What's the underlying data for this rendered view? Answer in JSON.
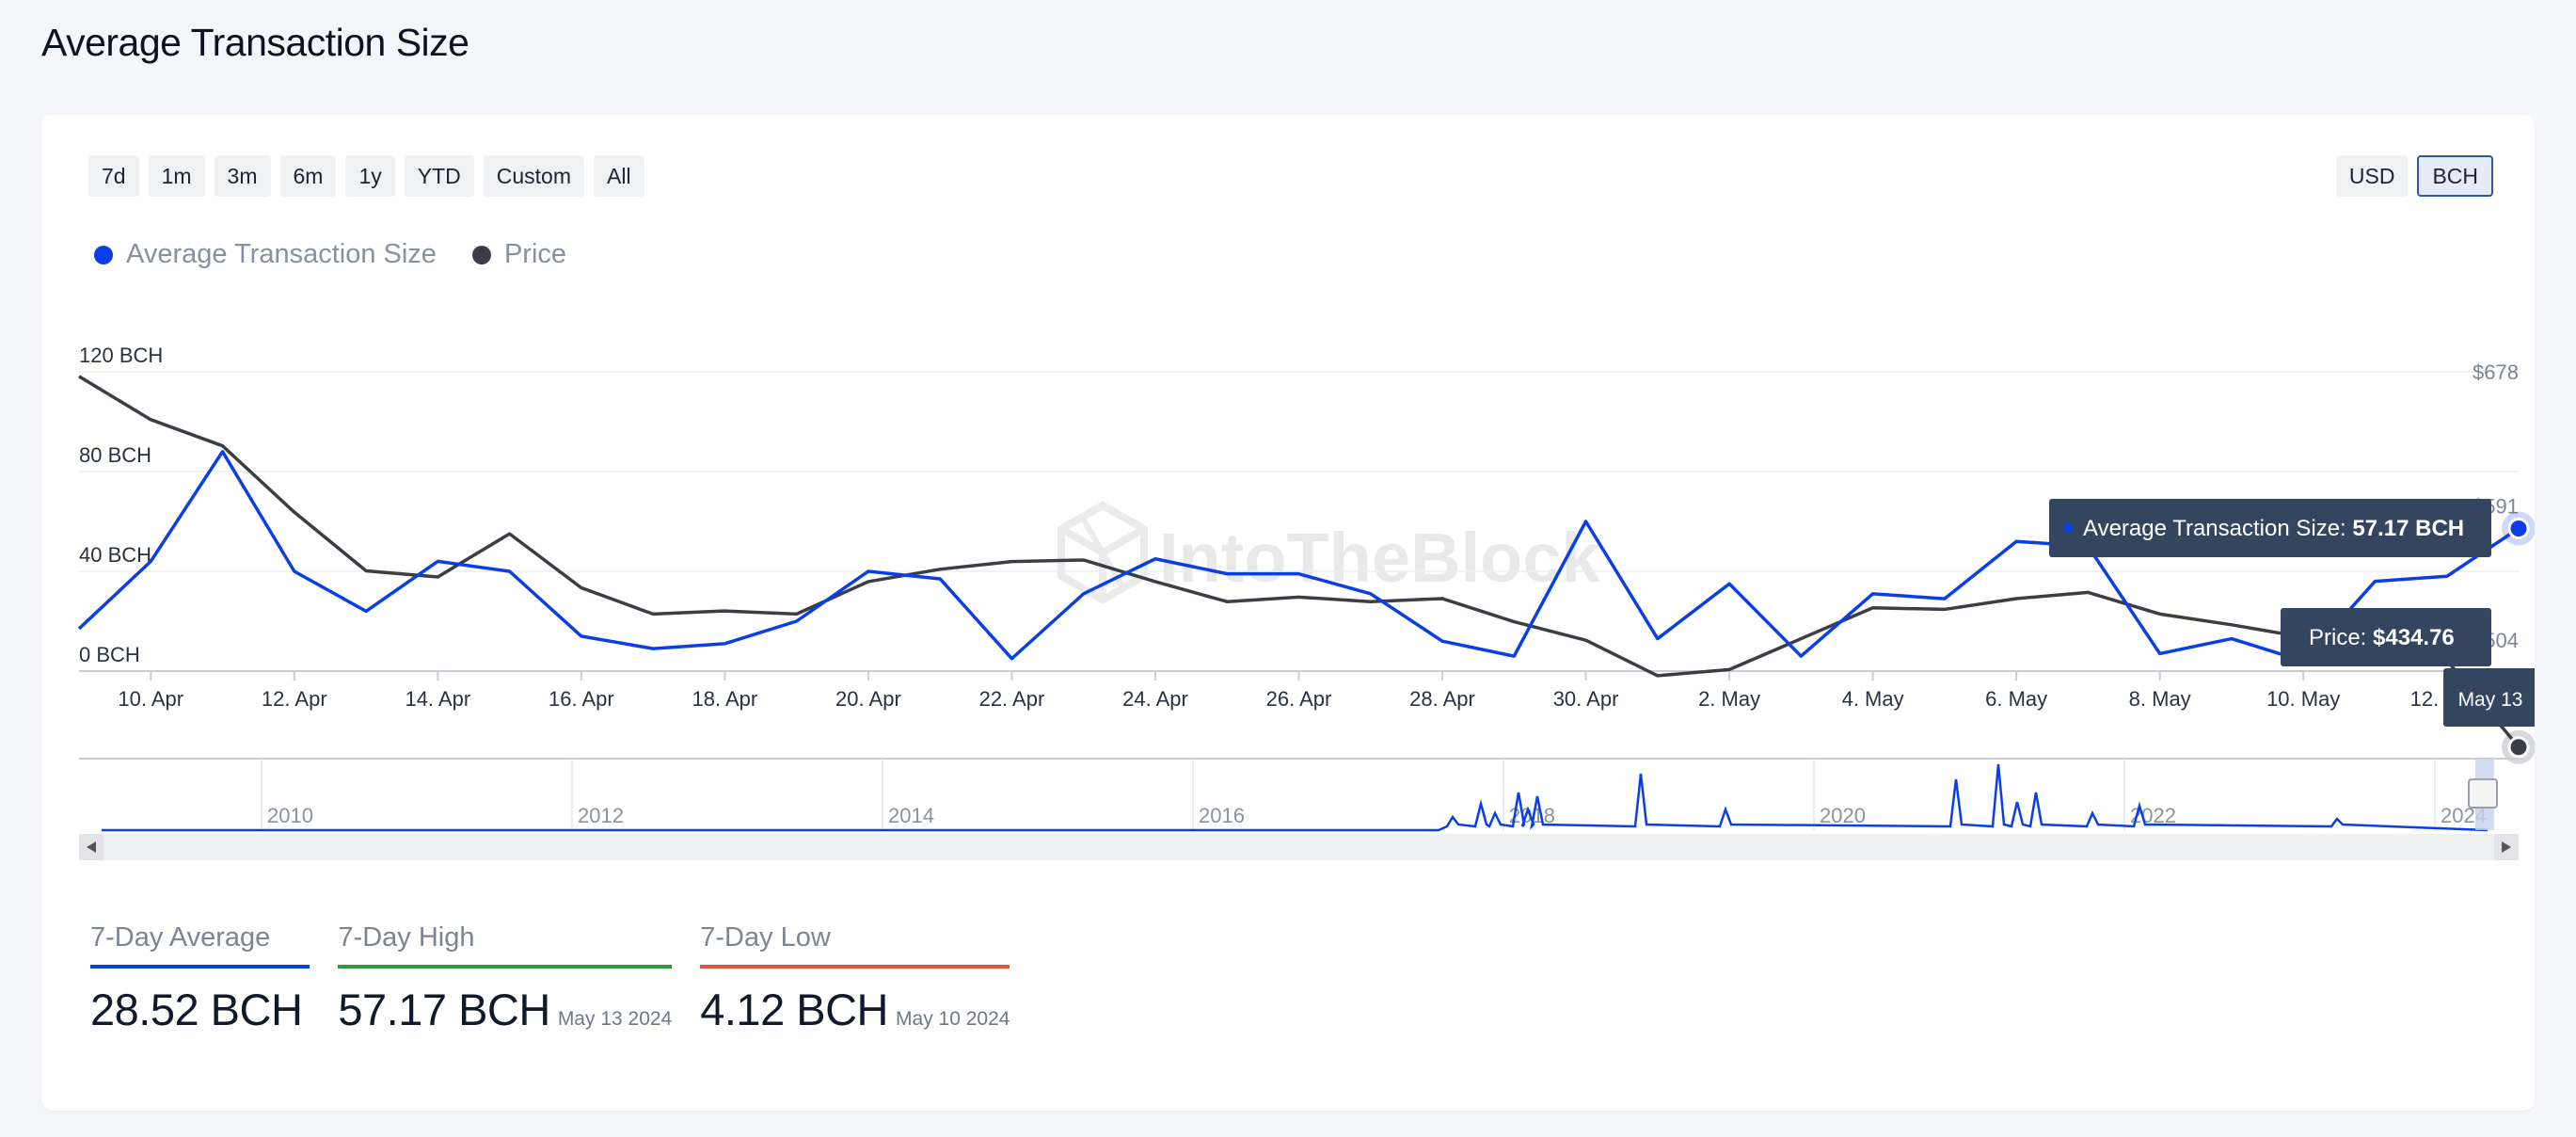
{
  "page": {
    "title": "Average Transaction Size"
  },
  "controls": {
    "ranges": [
      "7d",
      "1m",
      "3m",
      "6m",
      "1y",
      "YTD",
      "Custom",
      "All"
    ],
    "units": [
      "USD",
      "BCH"
    ],
    "active_unit": "BCH"
  },
  "watermark": "IntoTheBlock",
  "colors": {
    "avg_size": "#0a3ee6",
    "price": "#3b3f45",
    "average_rule": "#0a3ee6",
    "high_rule": "#2f9a3a",
    "low_rule": "#e0533d",
    "tooltip_bg": "#344560"
  },
  "chart_data": {
    "type": "line",
    "x": [
      "9. Apr",
      "10. Apr",
      "11. Apr",
      "12. Apr",
      "13. Apr",
      "14. Apr",
      "15. Apr",
      "16. Apr",
      "17. Apr",
      "18. Apr",
      "19. Apr",
      "20. Apr",
      "21. Apr",
      "22. Apr",
      "23. Apr",
      "24. Apr",
      "25. Apr",
      "26. Apr",
      "27. Apr",
      "28. Apr",
      "29. Apr",
      "30. Apr",
      "1. May",
      "2. May",
      "3. May",
      "4. May",
      "5. May",
      "6. May",
      "7. May",
      "8. May",
      "9. May",
      "10. May",
      "11. May",
      "12. May",
      "13. May"
    ],
    "x_tick_labels": [
      "10. Apr",
      "12. Apr",
      "14. Apr",
      "16. Apr",
      "18. Apr",
      "20. Apr",
      "22. Apr",
      "24. Apr",
      "26. Apr",
      "28. Apr",
      "30. Apr",
      "2. May",
      "4. May",
      "6. May",
      "8. May",
      "10. May",
      "12. May"
    ],
    "series": [
      {
        "name": "Average Transaction Size",
        "axis": "left",
        "values": [
          17,
          44,
          88,
          40,
          24,
          44,
          40,
          14,
          9,
          11,
          20,
          40,
          37,
          5,
          31,
          45,
          39,
          39,
          31,
          12,
          6,
          60,
          13,
          35,
          6,
          31,
          29,
          52,
          50,
          7,
          13,
          4,
          36,
          38,
          57.17
        ]
      },
      {
        "name": "Price",
        "axis": "right",
        "values": [
          675,
          647,
          630,
          587,
          549,
          545,
          573,
          538,
          521,
          523,
          521,
          542,
          550,
          555,
          556,
          542,
          529,
          532,
          529,
          531,
          516,
          504,
          481,
          485,
          505,
          525,
          524,
          531,
          535,
          521,
          514,
          506,
          500,
          491,
          434.76
        ]
      }
    ],
    "y_left": {
      "ticks": [
        "0 BCH",
        "40 BCH",
        "80 BCH",
        "120 BCH"
      ],
      "range": [
        0,
        120
      ]
    },
    "y_right": {
      "ticks": [
        "$504",
        "$591",
        "$678"
      ],
      "range": [
        484,
        678
      ]
    },
    "tooltips": {
      "avg": {
        "label": "Average Transaction Size: ",
        "value": "57.17 BCH"
      },
      "price": {
        "label": "Price: ",
        "value": "$434.76"
      },
      "date": "May 13"
    },
    "navigator": {
      "year_labels": [
        "2010",
        "2012",
        "2014",
        "2016",
        "2018",
        "2020",
        "2022",
        "2024"
      ]
    },
    "legend_position": "top-left",
    "grid": true
  },
  "stats": [
    {
      "label": "7-Day Average",
      "value": "28.52 BCH",
      "date": ""
    },
    {
      "label": "7-Day High",
      "value": "57.17 BCH",
      "date": "May 13 2024"
    },
    {
      "label": "7-Day Low",
      "value": "4.12 BCH",
      "date": "May 10 2024"
    }
  ]
}
